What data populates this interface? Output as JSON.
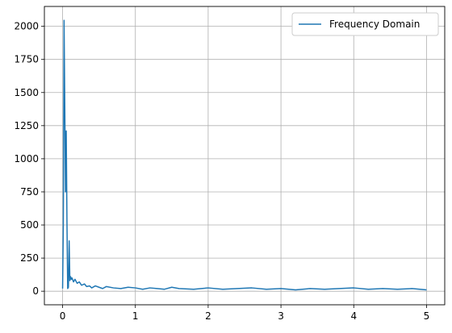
{
  "chart_data": {
    "type": "line",
    "title": "",
    "xlabel": "",
    "ylabel": "",
    "xlim": [
      -0.25,
      5.25
    ],
    "ylim": [
      -102.5,
      2150
    ],
    "grid": true,
    "legend_position": "top-right",
    "x_ticks": [
      0,
      1,
      2,
      3,
      4,
      5
    ],
    "x_tick_labels": [
      "0",
      "1",
      "2",
      "3",
      "4",
      "5"
    ],
    "y_ticks": [
      0,
      250,
      500,
      750,
      1000,
      1250,
      1500,
      1750,
      2000
    ],
    "y_tick_labels": [
      "0",
      "250",
      "500",
      "750",
      "1000",
      "1250",
      "1500",
      "1750",
      "2000"
    ],
    "series": [
      {
        "name": "Frequency Domain",
        "color": "#1f77b4",
        "x": [
          0.0,
          0.01,
          0.02,
          0.03,
          0.04,
          0.05,
          0.06,
          0.07,
          0.08,
          0.09,
          0.1,
          0.11,
          0.12,
          0.13,
          0.14,
          0.15,
          0.17,
          0.2,
          0.23,
          0.26,
          0.3,
          0.33,
          0.37,
          0.4,
          0.45,
          0.5,
          0.55,
          0.6,
          0.7,
          0.8,
          0.9,
          1.0,
          1.1,
          1.2,
          1.3,
          1.4,
          1.5,
          1.6,
          1.8,
          2.0,
          2.2,
          2.4,
          2.6,
          2.8,
          3.0,
          3.2,
          3.4,
          3.6,
          3.8,
          4.0,
          4.2,
          4.4,
          4.6,
          4.8,
          5.0
        ],
        "values": [
          20,
          500,
          2045,
          1400,
          750,
          1210,
          520,
          20,
          30,
          380,
          80,
          110,
          90,
          100,
          85,
          70,
          90,
          60,
          70,
          45,
          55,
          35,
          40,
          25,
          40,
          30,
          20,
          35,
          25,
          20,
          30,
          25,
          15,
          25,
          20,
          15,
          30,
          20,
          15,
          25,
          15,
          20,
          25,
          15,
          20,
          10,
          20,
          15,
          20,
          25,
          15,
          20,
          15,
          20,
          10
        ]
      }
    ]
  }
}
